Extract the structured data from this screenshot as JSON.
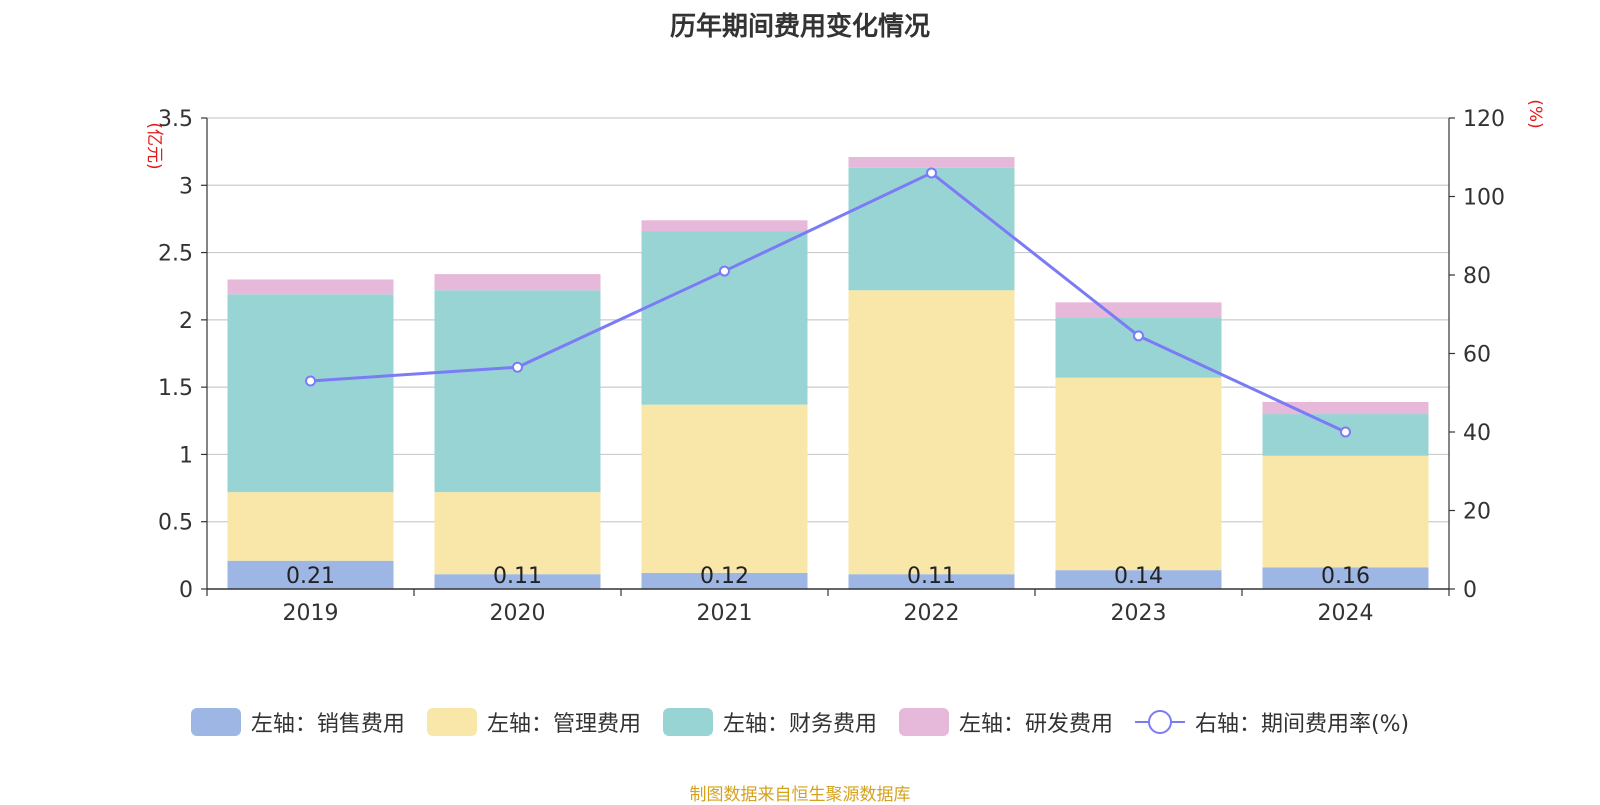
{
  "title": "历年期间费用变化情况",
  "source": "制图数据来自恒生聚源数据库",
  "colors": {
    "sales": "#9db6e4",
    "admin": "#f8e7a8",
    "finance": "#99d4d4",
    "rd": "#e6b8da",
    "rate": "#7b7bf5",
    "axis_unit": "#e01b1b"
  },
  "legend": [
    {
      "label": "左轴：销售费用",
      "color": "#9db6e4",
      "type": "bar"
    },
    {
      "label": "左轴：管理费用",
      "color": "#f8e7a8",
      "type": "bar"
    },
    {
      "label": "左轴：财务费用",
      "color": "#99d4d4",
      "type": "bar"
    },
    {
      "label": "左轴：研发费用",
      "color": "#e6b8da",
      "type": "bar"
    },
    {
      "label": "右轴：期间费用率(%)",
      "color": "#7b7bf5",
      "type": "line"
    }
  ],
  "chart_data": {
    "type": "bar",
    "stacked": true,
    "categories": [
      "2019",
      "2020",
      "2021",
      "2022",
      "2023",
      "2024"
    ],
    "series": [
      {
        "name": "左轴：销售费用",
        "axis": "left",
        "values": [
          0.21,
          0.11,
          0.12,
          0.11,
          0.14,
          0.16
        ],
        "labels": [
          "0.21",
          "0.11",
          "0.12",
          "0.11",
          "0.14",
          "0.16"
        ]
      },
      {
        "name": "左轴：管理费用",
        "axis": "left",
        "values": [
          0.51,
          0.61,
          1.25,
          2.11,
          1.43,
          0.83
        ]
      },
      {
        "name": "左轴：财务费用",
        "axis": "left",
        "values": [
          1.47,
          1.5,
          1.29,
          0.91,
          0.45,
          0.31
        ]
      },
      {
        "name": "左轴：研发费用",
        "axis": "left",
        "values": [
          0.11,
          0.12,
          0.08,
          0.08,
          0.11,
          0.09
        ]
      },
      {
        "name": "右轴：期间费用率(%)",
        "axis": "right",
        "type": "line",
        "values": [
          53.0,
          56.5,
          81.0,
          106.0,
          64.5,
          40.0
        ]
      }
    ],
    "y_left": {
      "unit": "(亿元)",
      "ylim": [
        0,
        3.5
      ],
      "ticks": [
        "0",
        "0.5",
        "1",
        "1.5",
        "2",
        "2.5",
        "3",
        "3.5"
      ],
      "tick_values": [
        0,
        0.5,
        1,
        1.5,
        2,
        2.5,
        3,
        3.5
      ]
    },
    "y_right": {
      "unit": "(%)",
      "ylim": [
        0,
        120
      ],
      "ticks": [
        "0",
        "20",
        "40",
        "60",
        "80",
        "100",
        "120"
      ],
      "tick_values": [
        0,
        20,
        40,
        60,
        80,
        100,
        120
      ]
    },
    "grid": true,
    "legend_position": "bottom"
  }
}
